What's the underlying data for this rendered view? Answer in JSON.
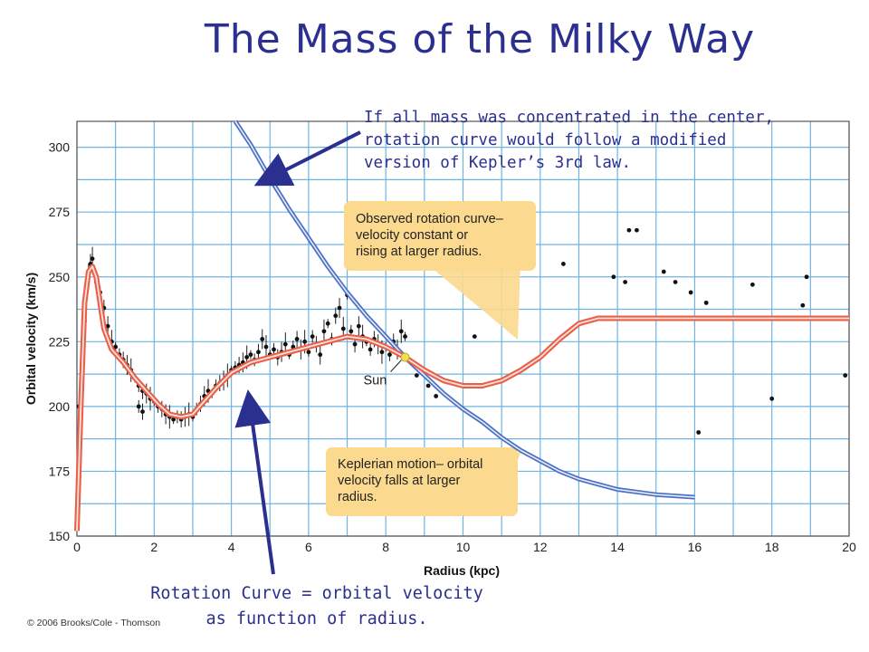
{
  "slide": {
    "title": "The Mass of the Milky Way",
    "callout_top": "If all mass was concentrated in the center, rotation curve would follow a modified version of Kepler’s 3rd law.",
    "caption_bottom": "Rotation Curve = orbital velocity as function of radius.",
    "copyright": "© 2006 Brooks/Cole - Thomson"
  },
  "colors": {
    "title": "#2b2f8f",
    "arrow": "#2b2f8f",
    "observed_curve": "#e8604a",
    "keplerian_curve": "#4a6fc4",
    "grid": "#6fb4e0",
    "callout_box": "#fbd98e",
    "sun_marker": "#f2e04a"
  },
  "chart_data": {
    "type": "line",
    "xlabel": "Radius (kpc)",
    "ylabel": "Orbital velocity (km/s)",
    "xlim": [
      0,
      20
    ],
    "ylim": [
      150,
      310
    ],
    "xticks": [
      0,
      2,
      4,
      6,
      8,
      10,
      12,
      14,
      16,
      18,
      20
    ],
    "yticks": [
      150,
      175,
      200,
      225,
      250,
      275,
      300
    ],
    "grid": true,
    "annotations": {
      "observed": "Observed rotation curve– velocity constant or rising at larger radius.",
      "keplerian": "Keplerian motion– orbital velocity falls at larger radius.",
      "sun": "Sun"
    },
    "sun_position": {
      "x": 8.5,
      "y": 219
    },
    "series": [
      {
        "role": "observed-rotation-curve",
        "points": [
          [
            0.0,
            152
          ],
          [
            0.1,
            200
          ],
          [
            0.2,
            240
          ],
          [
            0.3,
            252
          ],
          [
            0.4,
            254
          ],
          [
            0.5,
            250
          ],
          [
            0.6,
            240
          ],
          [
            0.7,
            230
          ],
          [
            0.9,
            222
          ],
          [
            1.2,
            217
          ],
          [
            1.5,
            211
          ],
          [
            1.8,
            206
          ],
          [
            2.1,
            201
          ],
          [
            2.4,
            197
          ],
          [
            2.7,
            196
          ],
          [
            3.0,
            197
          ],
          [
            3.3,
            202
          ],
          [
            3.6,
            207
          ],
          [
            4.0,
            213
          ],
          [
            4.5,
            217
          ],
          [
            5.0,
            219
          ],
          [
            5.5,
            221
          ],
          [
            6.0,
            223
          ],
          [
            6.5,
            225
          ],
          [
            7.0,
            227
          ],
          [
            7.5,
            226
          ],
          [
            8.0,
            223
          ],
          [
            8.5,
            219
          ],
          [
            9.0,
            214
          ],
          [
            9.5,
            210
          ],
          [
            10.0,
            208
          ],
          [
            10.5,
            208
          ],
          [
            11.0,
            210
          ],
          [
            11.5,
            214
          ],
          [
            12.0,
            219
          ],
          [
            12.5,
            226
          ],
          [
            13.0,
            232
          ],
          [
            13.5,
            234
          ],
          [
            14.0,
            234
          ],
          [
            16.0,
            234
          ],
          [
            18.0,
            234
          ],
          [
            20.0,
            234
          ]
        ]
      },
      {
        "role": "keplerian-curve",
        "points": [
          [
            4.1,
            310
          ],
          [
            4.5,
            301
          ],
          [
            5.0,
            288
          ],
          [
            5.5,
            276
          ],
          [
            6.0,
            265
          ],
          [
            6.5,
            254
          ],
          [
            7.0,
            244
          ],
          [
            7.5,
            235
          ],
          [
            8.0,
            227
          ],
          [
            8.5,
            219
          ],
          [
            9.0,
            212
          ],
          [
            9.5,
            205
          ],
          [
            10.0,
            199
          ],
          [
            10.5,
            194
          ],
          [
            11.0,
            188
          ],
          [
            11.5,
            183
          ],
          [
            12.0,
            179
          ],
          [
            12.5,
            175
          ],
          [
            13.0,
            172
          ],
          [
            13.5,
            170
          ],
          [
            14.0,
            168
          ],
          [
            14.5,
            167
          ],
          [
            15.0,
            166
          ],
          [
            15.5,
            165.5
          ],
          [
            16.0,
            165
          ]
        ]
      }
    ],
    "observations": {
      "inner": [
        [
          0.05,
          200
        ],
        [
          0.2,
          233
        ],
        [
          0.3,
          252
        ],
        [
          0.35,
          255
        ],
        [
          0.4,
          257
        ],
        [
          0.5,
          248
        ],
        [
          0.6,
          244
        ],
        [
          0.7,
          238
        ],
        [
          0.8,
          231
        ],
        [
          0.9,
          225
        ],
        [
          1.0,
          223
        ],
        [
          1.1,
          220
        ],
        [
          1.2,
          218
        ],
        [
          1.3,
          216
        ],
        [
          1.4,
          214
        ],
        [
          1.5,
          211
        ],
        [
          1.6,
          208
        ],
        [
          1.7,
          206
        ],
        [
          1.8,
          205
        ],
        [
          1.9,
          203
        ],
        [
          2.0,
          202
        ],
        [
          2.1,
          200
        ],
        [
          2.2,
          199
        ],
        [
          2.3,
          197
        ],
        [
          2.4,
          196
        ],
        [
          2.5,
          195
        ],
        [
          2.6,
          196
        ],
        [
          2.7,
          195
        ],
        [
          2.8,
          196
        ],
        [
          2.9,
          197
        ],
        [
          3.0,
          196
        ],
        [
          3.1,
          199
        ],
        [
          3.2,
          201
        ],
        [
          3.3,
          204
        ],
        [
          3.4,
          206
        ],
        [
          3.5,
          205
        ],
        [
          3.6,
          208
        ],
        [
          3.7,
          209
        ],
        [
          3.8,
          210
        ],
        [
          3.9,
          212
        ],
        [
          4.0,
          214
        ],
        [
          4.1,
          215
        ],
        [
          4.2,
          216
        ],
        [
          4.3,
          217
        ],
        [
          4.4,
          219
        ],
        [
          4.5,
          220
        ],
        [
          4.6,
          218
        ],
        [
          4.7,
          221
        ],
        [
          4.8,
          226
        ],
        [
          4.9,
          223
        ],
        [
          5.0,
          220
        ],
        [
          5.1,
          222
        ],
        [
          5.2,
          219
        ],
        [
          5.3,
          221
        ],
        [
          5.4,
          224
        ],
        [
          5.5,
          220
        ],
        [
          5.6,
          223
        ],
        [
          5.7,
          226
        ],
        [
          5.8,
          222
        ],
        [
          5.9,
          225
        ],
        [
          6.0,
          221
        ],
        [
          6.1,
          227
        ],
        [
          6.2,
          224
        ],
        [
          6.3,
          220
        ],
        [
          6.4,
          229
        ],
        [
          6.5,
          232
        ],
        [
          6.6,
          226
        ],
        [
          6.7,
          235
        ],
        [
          6.8,
          238
        ],
        [
          6.9,
          230
        ],
        [
          7.0,
          243
        ],
        [
          7.1,
          229
        ],
        [
          7.2,
          224
        ],
        [
          7.3,
          231
        ],
        [
          7.4,
          227
        ],
        [
          7.5,
          225
        ],
        [
          7.6,
          222
        ],
        [
          7.7,
          226
        ],
        [
          7.8,
          224
        ],
        [
          7.9,
          221
        ],
        [
          8.0,
          223
        ],
        [
          8.1,
          220
        ],
        [
          8.2,
          225
        ],
        [
          8.3,
          222
        ],
        [
          8.4,
          229
        ],
        [
          8.5,
          227
        ],
        [
          1.6,
          200
        ],
        [
          1.7,
          198
        ]
      ],
      "outer": [
        [
          8.8,
          212
        ],
        [
          9.1,
          208
        ],
        [
          9.3,
          204
        ],
        [
          10.3,
          227
        ],
        [
          12.6,
          255
        ],
        [
          13.9,
          250
        ],
        [
          14.2,
          248
        ],
        [
          14.3,
          268
        ],
        [
          14.5,
          268
        ],
        [
          15.2,
          252
        ],
        [
          15.5,
          248
        ],
        [
          15.9,
          244
        ],
        [
          16.3,
          240
        ],
        [
          16.1,
          190
        ],
        [
          17.5,
          247
        ],
        [
          18.0,
          203
        ],
        [
          18.8,
          239
        ],
        [
          18.9,
          250
        ],
        [
          19.9,
          212
        ]
      ]
    }
  }
}
